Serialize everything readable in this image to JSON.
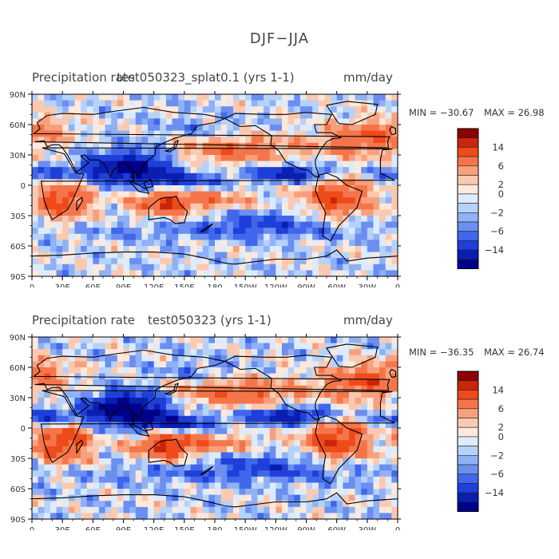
{
  "page": {
    "title": "DJF−JJA"
  },
  "chart_data": [
    {
      "type": "heatmap",
      "title": "Precipitation rate",
      "overlay_text": "test050323_splat0.1 (yrs 1-1)",
      "units": "mm/day",
      "min_label": "MIN = −30.67",
      "max_label": "MAX =  26.98",
      "min": -30.67,
      "max": 26.98,
      "x_ticks": [
        "0",
        "30E",
        "60E",
        "90E",
        "120E",
        "150E",
        "180",
        "150W",
        "120W",
        "90W",
        "60W",
        "30W",
        "0"
      ],
      "y_ticks": [
        "90N",
        "60N",
        "30N",
        "0",
        "30S",
        "60S",
        "90S"
      ],
      "colorbar_labels": [
        "14",
        "6",
        "2",
        "0",
        "−2",
        "−6",
        "−14"
      ],
      "colors": [
        "#8b0000",
        "#c8250a",
        "#ee4a1a",
        "#f5754a",
        "#f8a07d",
        "#fbc9b0",
        "#fde9dc",
        "#dcebfd",
        "#b6d2fa",
        "#8fb1f5",
        "#6b8ef0",
        "#4067eb",
        "#1f3fd9",
        "#0a1fb0",
        "#00008b"
      ]
    },
    {
      "type": "heatmap",
      "title": "Precipitation rate",
      "overlay_text": "test050323 (yrs 1-1)",
      "units": "mm/day",
      "min_label": "MIN = −36.35",
      "max_label": "MAX =  26.74",
      "min": -36.35,
      "max": 26.74,
      "x_ticks": [
        "0",
        "30E",
        "60E",
        "90E",
        "120E",
        "150E",
        "180",
        "150W",
        "120W",
        "90W",
        "60W",
        "30W",
        "0"
      ],
      "y_ticks": [
        "90N",
        "60N",
        "30N",
        "0",
        "30S",
        "60S",
        "90S"
      ],
      "colorbar_labels": [
        "14",
        "6",
        "2",
        "0",
        "−2",
        "−6",
        "−14"
      ],
      "colors": [
        "#8b0000",
        "#c8250a",
        "#ee4a1a",
        "#f5754a",
        "#f8a07d",
        "#fbc9b0",
        "#fde9dc",
        "#dcebfd",
        "#b6d2fa",
        "#8fb1f5",
        "#6b8ef0",
        "#4067eb",
        "#1f3fd9",
        "#0a1fb0",
        "#00008b"
      ]
    }
  ]
}
